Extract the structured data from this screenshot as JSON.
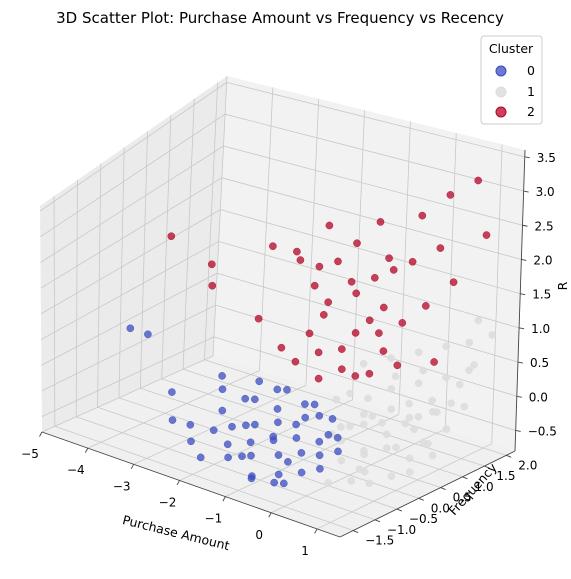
{
  "chart_data": {
    "type": "scatter",
    "title": "3D Scatter Plot: Purchase Amount vs Frequency vs Recency",
    "xlabel": "Purchase Amount",
    "ylabel": "Frequency",
    "zlabel": "R",
    "xlim": [
      -5,
      1.5
    ],
    "ylim": [
      -1.8,
      2.2
    ],
    "zlim": [
      -0.8,
      3.6
    ],
    "xticks": [
      "−5",
      "−4",
      "−3",
      "−2",
      "−1",
      "0",
      "1"
    ],
    "yticks": [
      "−1.5",
      "−1.0",
      "−0.5",
      "0.0",
      "0.5",
      "1.0",
      "1.5",
      "2.0"
    ],
    "zticks": [
      "−0.5",
      "0.0",
      "0.5",
      "1.0",
      "1.5",
      "2.0",
      "2.5",
      "3.0",
      "3.5"
    ],
    "grid": true,
    "legend": {
      "title": "Cluster",
      "placement": "top-right",
      "entries": [
        "0",
        "1",
        "2"
      ]
    },
    "colors": {
      "0": "#3b4cc0",
      "1": "#dddddd",
      "2": "#b40426"
    },
    "series": [
      {
        "name": "0",
        "color": "#3b4cc0",
        "points": [
          [
            -4.6,
            -0.2,
            0.6
          ],
          [
            -4.5,
            0.1,
            0.4
          ],
          [
            -3.4,
            -0.5,
            -0.1
          ],
          [
            -3.1,
            -0.8,
            -0.4
          ],
          [
            -2.9,
            -0.6,
            -0.5
          ],
          [
            -2.6,
            -0.9,
            -0.6
          ],
          [
            -2.4,
            -0.4,
            -0.2
          ],
          [
            -2.3,
            -0.7,
            -0.4
          ],
          [
            -2.2,
            -1.1,
            -0.7
          ],
          [
            -2.1,
            -0.2,
            0.0
          ],
          [
            -2.0,
            -0.6,
            -0.3
          ],
          [
            -1.9,
            -0.8,
            -0.5
          ],
          [
            -1.8,
            -0.3,
            0.1
          ],
          [
            -1.7,
            -1.0,
            -0.6
          ],
          [
            -1.6,
            -0.5,
            -0.2
          ],
          [
            -1.5,
            -0.7,
            -0.4
          ],
          [
            -1.4,
            -0.2,
            0.0
          ],
          [
            -1.3,
            -0.9,
            -0.5
          ],
          [
            -1.2,
            -0.4,
            -0.1
          ],
          [
            -1.1,
            -0.6,
            -0.3
          ],
          [
            -1.0,
            -1.2,
            -0.7
          ],
          [
            -0.9,
            -0.3,
            -0.1
          ],
          [
            -0.8,
            -0.8,
            -0.4
          ],
          [
            -0.7,
            -0.5,
            -0.2
          ],
          [
            -0.6,
            -1.0,
            -0.6
          ],
          [
            -0.5,
            -0.2,
            0.1
          ],
          [
            -0.4,
            -0.7,
            -0.3
          ],
          [
            -0.3,
            -0.4,
            -0.2
          ],
          [
            -0.2,
            -0.9,
            -0.5
          ],
          [
            -0.1,
            -0.6,
            -0.3
          ],
          [
            0.0,
            -0.3,
            -0.1
          ],
          [
            0.1,
            -0.8,
            -0.4
          ],
          [
            0.2,
            -0.5,
            -0.2
          ],
          [
            -1.9,
            -0.1,
            0.3
          ],
          [
            -1.6,
            0.0,
            0.2
          ],
          [
            -1.3,
            -0.1,
            0.3
          ],
          [
            -1.0,
            0.0,
            0.1
          ],
          [
            -0.7,
            -0.1,
            0.2
          ],
          [
            -0.4,
            0.0,
            0.0
          ],
          [
            -0.9,
            -1.3,
            -0.6
          ],
          [
            -0.6,
            -1.1,
            -0.7
          ],
          [
            -0.3,
            -1.2,
            -0.6
          ],
          [
            -1.4,
            -1.0,
            -0.5
          ],
          [
            -2.5,
            -0.3,
            0.1
          ],
          [
            -2.7,
            -0.1,
            0.2
          ],
          [
            -1.2,
            -0.5,
            -0.3
          ],
          [
            -0.8,
            -0.2,
            0.0
          ],
          [
            -0.5,
            -0.9,
            -0.4
          ],
          [
            -0.2,
            -0.3,
            -0.1
          ],
          [
            -1.7,
            -0.6,
            -0.2
          ]
        ]
      },
      {
        "name": "1",
        "color": "#dddddd",
        "points": [
          [
            -0.5,
            0.5,
            0.2
          ],
          [
            -0.3,
            0.7,
            0.1
          ],
          [
            -0.1,
            0.4,
            0.0
          ],
          [
            0.1,
            0.8,
            0.3
          ],
          [
            0.3,
            0.6,
            0.1
          ],
          [
            0.5,
            1.0,
            0.4
          ],
          [
            0.7,
            0.5,
            0.0
          ],
          [
            0.9,
            1.2,
            0.5
          ],
          [
            1.1,
            0.7,
            0.2
          ],
          [
            1.3,
            0.9,
            0.3
          ],
          [
            -0.4,
            0.2,
            -0.2
          ],
          [
            -0.2,
            0.0,
            -0.3
          ],
          [
            0.0,
            0.3,
            -0.1
          ],
          [
            0.2,
            0.1,
            -0.4
          ],
          [
            0.4,
            0.4,
            -0.2
          ],
          [
            0.6,
            0.2,
            -0.3
          ],
          [
            0.8,
            0.6,
            -0.1
          ],
          [
            1.0,
            0.3,
            -0.4
          ],
          [
            1.2,
            0.5,
            -0.2
          ],
          [
            1.4,
            1.1,
            0.2
          ],
          [
            -0.6,
            0.9,
            0.5
          ],
          [
            -0.2,
            1.1,
            0.6
          ],
          [
            0.2,
            1.3,
            0.7
          ],
          [
            0.6,
            1.5,
            0.8
          ],
          [
            1.0,
            1.6,
            0.9
          ],
          [
            1.3,
            1.8,
            1.0
          ],
          [
            0.0,
            -0.2,
            -0.5
          ],
          [
            0.3,
            -0.1,
            -0.6
          ],
          [
            0.6,
            -0.3,
            -0.5
          ],
          [
            0.9,
            0.0,
            -0.6
          ],
          [
            1.2,
            0.1,
            -0.5
          ],
          [
            -0.1,
            0.6,
            -0.1
          ],
          [
            0.4,
            0.9,
            0.1
          ],
          [
            0.8,
            1.0,
            0.2
          ],
          [
            1.1,
            1.3,
            0.4
          ],
          [
            0.5,
            -0.5,
            -0.6
          ],
          [
            0.1,
            -0.6,
            -0.7
          ],
          [
            0.8,
            -0.4,
            -0.6
          ],
          [
            1.4,
            0.4,
            -0.3
          ],
          [
            -0.3,
            0.3,
            -0.2
          ],
          [
            0.7,
            0.8,
            0.0
          ],
          [
            1.2,
            1.4,
            0.6
          ],
          [
            0.0,
            1.0,
            0.4
          ],
          [
            0.4,
            1.2,
            0.5
          ],
          [
            0.9,
            1.9,
            1.1
          ],
          [
            1.3,
            1.4,
            0.7
          ],
          [
            -0.7,
            0.4,
            0.1
          ],
          [
            -0.5,
            0.1,
            -0.3
          ],
          [
            0.2,
            0.5,
            -0.1
          ],
          [
            0.6,
            0.7,
            0.0
          ],
          [
            1.0,
            0.9,
            0.1
          ],
          [
            1.4,
            0.7,
            0.0
          ],
          [
            0.3,
            0.0,
            -0.4
          ],
          [
            0.7,
            0.3,
            -0.3
          ],
          [
            1.1,
            0.5,
            -0.2
          ]
        ]
      },
      {
        "name": "2",
        "color": "#b40426",
        "points": [
          [
            -4.9,
            1.0,
            1.6
          ],
          [
            -4.2,
            1.2,
            1.2
          ],
          [
            -3.8,
            0.8,
            1.1
          ],
          [
            -3.0,
            1.3,
            1.7
          ],
          [
            -2.6,
            0.6,
            0.9
          ],
          [
            -2.2,
            1.0,
            1.9
          ],
          [
            -1.9,
            1.4,
            2.2
          ],
          [
            -1.7,
            0.9,
            1.5
          ],
          [
            -1.5,
            1.2,
            1.8
          ],
          [
            -1.3,
            0.7,
            1.2
          ],
          [
            -1.1,
            1.1,
            1.6
          ],
          [
            -0.9,
            1.5,
            2.4
          ],
          [
            -0.7,
            0.8,
            1.0
          ],
          [
            -0.5,
            1.3,
            2.0
          ],
          [
            -0.3,
            1.0,
            1.4
          ],
          [
            -0.1,
            1.6,
            2.6
          ],
          [
            0.1,
            1.2,
            2.1
          ],
          [
            0.3,
            1.8,
            2.9
          ],
          [
            0.5,
            1.4,
            2.3
          ],
          [
            0.7,
            2.0,
            3.1
          ],
          [
            -2.0,
            0.5,
            0.6
          ],
          [
            -1.6,
            0.4,
            0.5
          ],
          [
            -1.2,
            0.5,
            0.7
          ],
          [
            -0.8,
            0.6,
            0.8
          ],
          [
            -0.4,
            0.5,
            0.5
          ],
          [
            0.0,
            0.7,
            0.9
          ],
          [
            -1.0,
            0.3,
            0.4
          ],
          [
            -0.6,
            0.4,
            0.6
          ],
          [
            -0.2,
            0.8,
            1.1
          ],
          [
            0.2,
            0.9,
            1.3
          ],
          [
            -1.4,
            0.9,
            1.3
          ],
          [
            -0.9,
            1.0,
            1.5
          ],
          [
            -0.5,
            0.9,
            1.2
          ],
          [
            -1.8,
            1.1,
            1.7
          ],
          [
            -2.4,
            1.3,
            1.6
          ],
          [
            0.6,
            1.0,
            1.6
          ],
          [
            0.9,
            1.3,
            1.9
          ],
          [
            1.2,
            1.7,
            2.5
          ],
          [
            -0.3,
            1.2,
            1.9
          ],
          [
            -1.2,
            1.3,
            2.1
          ],
          [
            0.4,
            0.6,
            0.8
          ],
          [
            -0.1,
            0.5,
            0.6
          ],
          [
            -0.7,
            1.2,
            1.7
          ],
          [
            1.0,
            0.8,
            0.9
          ],
          [
            -1.5,
            0.6,
            0.9
          ]
        ]
      }
    ]
  }
}
